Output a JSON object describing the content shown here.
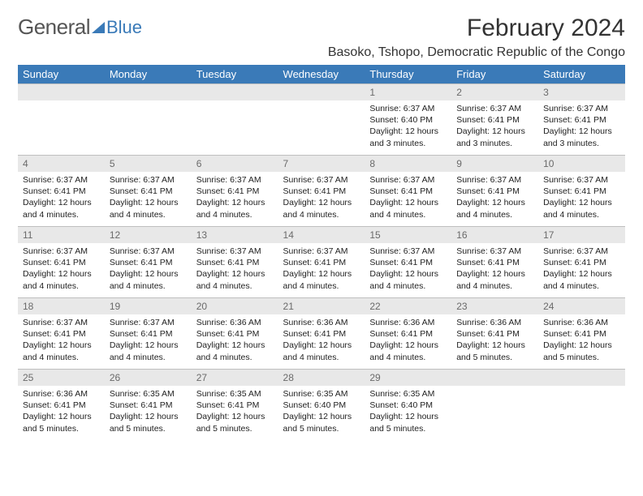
{
  "brand": {
    "main": "General",
    "sub": "Blue",
    "icon_color": "#3a7ab8"
  },
  "title": "February 2024",
  "location": "Basoko, Tshopo, Democratic Republic of the Congo",
  "colors": {
    "header_bg": "#3a7ab8",
    "header_text": "#ffffff",
    "daynum_bg": "#e8e8e8",
    "daynum_text": "#6a6a6a",
    "body_text": "#222222",
    "page_bg": "#ffffff"
  },
  "typography": {
    "title_size": 30,
    "location_size": 16,
    "dow_size": 13,
    "detail_size": 10.5
  },
  "days_of_week": [
    "Sunday",
    "Monday",
    "Tuesday",
    "Wednesday",
    "Thursday",
    "Friday",
    "Saturday"
  ],
  "weeks": [
    [
      null,
      null,
      null,
      null,
      {
        "n": "1",
        "sunrise": "6:37 AM",
        "sunset": "6:40 PM",
        "daylight": "12 hours and 3 minutes."
      },
      {
        "n": "2",
        "sunrise": "6:37 AM",
        "sunset": "6:41 PM",
        "daylight": "12 hours and 3 minutes."
      },
      {
        "n": "3",
        "sunrise": "6:37 AM",
        "sunset": "6:41 PM",
        "daylight": "12 hours and 3 minutes."
      }
    ],
    [
      {
        "n": "4",
        "sunrise": "6:37 AM",
        "sunset": "6:41 PM",
        "daylight": "12 hours and 4 minutes."
      },
      {
        "n": "5",
        "sunrise": "6:37 AM",
        "sunset": "6:41 PM",
        "daylight": "12 hours and 4 minutes."
      },
      {
        "n": "6",
        "sunrise": "6:37 AM",
        "sunset": "6:41 PM",
        "daylight": "12 hours and 4 minutes."
      },
      {
        "n": "7",
        "sunrise": "6:37 AM",
        "sunset": "6:41 PM",
        "daylight": "12 hours and 4 minutes."
      },
      {
        "n": "8",
        "sunrise": "6:37 AM",
        "sunset": "6:41 PM",
        "daylight": "12 hours and 4 minutes."
      },
      {
        "n": "9",
        "sunrise": "6:37 AM",
        "sunset": "6:41 PM",
        "daylight": "12 hours and 4 minutes."
      },
      {
        "n": "10",
        "sunrise": "6:37 AM",
        "sunset": "6:41 PM",
        "daylight": "12 hours and 4 minutes."
      }
    ],
    [
      {
        "n": "11",
        "sunrise": "6:37 AM",
        "sunset": "6:41 PM",
        "daylight": "12 hours and 4 minutes."
      },
      {
        "n": "12",
        "sunrise": "6:37 AM",
        "sunset": "6:41 PM",
        "daylight": "12 hours and 4 minutes."
      },
      {
        "n": "13",
        "sunrise": "6:37 AM",
        "sunset": "6:41 PM",
        "daylight": "12 hours and 4 minutes."
      },
      {
        "n": "14",
        "sunrise": "6:37 AM",
        "sunset": "6:41 PM",
        "daylight": "12 hours and 4 minutes."
      },
      {
        "n": "15",
        "sunrise": "6:37 AM",
        "sunset": "6:41 PM",
        "daylight": "12 hours and 4 minutes."
      },
      {
        "n": "16",
        "sunrise": "6:37 AM",
        "sunset": "6:41 PM",
        "daylight": "12 hours and 4 minutes."
      },
      {
        "n": "17",
        "sunrise": "6:37 AM",
        "sunset": "6:41 PM",
        "daylight": "12 hours and 4 minutes."
      }
    ],
    [
      {
        "n": "18",
        "sunrise": "6:37 AM",
        "sunset": "6:41 PM",
        "daylight": "12 hours and 4 minutes."
      },
      {
        "n": "19",
        "sunrise": "6:37 AM",
        "sunset": "6:41 PM",
        "daylight": "12 hours and 4 minutes."
      },
      {
        "n": "20",
        "sunrise": "6:36 AM",
        "sunset": "6:41 PM",
        "daylight": "12 hours and 4 minutes."
      },
      {
        "n": "21",
        "sunrise": "6:36 AM",
        "sunset": "6:41 PM",
        "daylight": "12 hours and 4 minutes."
      },
      {
        "n": "22",
        "sunrise": "6:36 AM",
        "sunset": "6:41 PM",
        "daylight": "12 hours and 4 minutes."
      },
      {
        "n": "23",
        "sunrise": "6:36 AM",
        "sunset": "6:41 PM",
        "daylight": "12 hours and 5 minutes."
      },
      {
        "n": "24",
        "sunrise": "6:36 AM",
        "sunset": "6:41 PM",
        "daylight": "12 hours and 5 minutes."
      }
    ],
    [
      {
        "n": "25",
        "sunrise": "6:36 AM",
        "sunset": "6:41 PM",
        "daylight": "12 hours and 5 minutes."
      },
      {
        "n": "26",
        "sunrise": "6:35 AM",
        "sunset": "6:41 PM",
        "daylight": "12 hours and 5 minutes."
      },
      {
        "n": "27",
        "sunrise": "6:35 AM",
        "sunset": "6:41 PM",
        "daylight": "12 hours and 5 minutes."
      },
      {
        "n": "28",
        "sunrise": "6:35 AM",
        "sunset": "6:40 PM",
        "daylight": "12 hours and 5 minutes."
      },
      {
        "n": "29",
        "sunrise": "6:35 AM",
        "sunset": "6:40 PM",
        "daylight": "12 hours and 5 minutes."
      },
      null,
      null
    ]
  ],
  "labels": {
    "sunrise": "Sunrise:",
    "sunset": "Sunset:",
    "daylight": "Daylight:"
  }
}
